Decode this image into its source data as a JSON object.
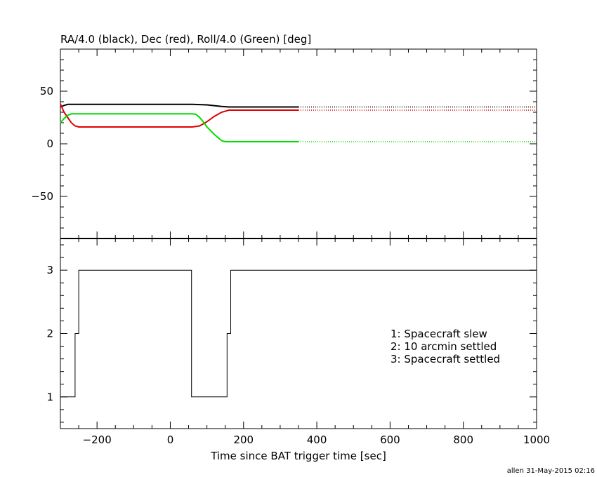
{
  "chart_data": [
    {
      "type": "line",
      "title": "RA/4.0 (black), Dec (red), Roll/4.0 (Green) [deg]",
      "xlim": [
        -300,
        1000
      ],
      "ylim": [
        -90,
        90
      ],
      "yticks": [
        50,
        0,
        -50
      ],
      "ytick_labels": [
        "50",
        "0",
        "−50"
      ],
      "grid": false,
      "series": [
        {
          "color": "#000000",
          "x": [
            -300,
            -290,
            -280,
            -260,
            60,
            80,
            100,
            120,
            140,
            160,
            350
          ],
          "y": [
            35,
            36.5,
            37.5,
            37.5,
            37.5,
            37.3,
            37,
            36.3,
            35.5,
            35,
            35
          ],
          "dotted_from": 350,
          "dotted_to": 1000
        },
        {
          "color": "#e00000",
          "x": [
            -300,
            -290,
            -280,
            -270,
            -260,
            -250,
            60,
            80,
            100,
            120,
            140,
            160,
            350
          ],
          "y": [
            38,
            30,
            25,
            20,
            17,
            16,
            16,
            17,
            21,
            26,
            30,
            32,
            32
          ],
          "dotted_from": 350,
          "dotted_to": 1000
        },
        {
          "color": "#00dd00",
          "x": [
            -300,
            -290,
            -280,
            -270,
            -260,
            60,
            70,
            80,
            90,
            100,
            120,
            140,
            150,
            160,
            350
          ],
          "y": [
            20,
            24,
            27,
            28.5,
            28.5,
            28.5,
            28,
            25,
            21,
            16,
            9,
            3,
            2,
            2,
            2
          ],
          "dotted_from": 350,
          "dotted_to": 1000
        }
      ]
    },
    {
      "type": "line",
      "xlabel": "Time since BAT trigger time [sec]",
      "xlim": [
        -300,
        1000
      ],
      "ylim": [
        0.5,
        3.5
      ],
      "xticks": [
        -200,
        0,
        200,
        400,
        600,
        800,
        1000
      ],
      "xtick_labels": [
        "−200",
        "0",
        "200",
        "400",
        "600",
        "800",
        "1000"
      ],
      "yticks": [
        1,
        2,
        3
      ],
      "ytick_labels": [
        "1",
        "2",
        "3"
      ],
      "grid": false,
      "series": [
        {
          "color": "#000000",
          "step": true,
          "x": [
            -300,
            -260,
            -250,
            58,
            155,
            165,
            1000
          ],
          "y": [
            1,
            2,
            3,
            1,
            2,
            3,
            3
          ]
        }
      ],
      "legend": [
        "1: Spacecraft slew",
        "2: 10 arcmin settled",
        "3: Spacecraft settled"
      ],
      "legend_position": "right"
    }
  ],
  "footer": "allen 31-May-2015 02:16"
}
